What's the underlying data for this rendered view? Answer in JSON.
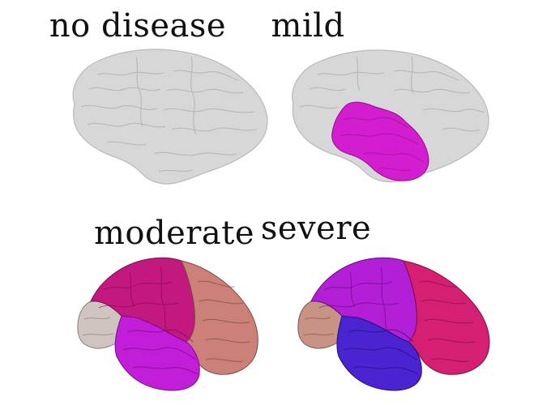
{
  "panels": [
    {
      "id": "no-disease",
      "title": "no disease",
      "regions": []
    },
    {
      "id": "mild",
      "title": "mild",
      "regions": [
        {
          "name": "temporal",
          "color": "#d21ecf"
        }
      ]
    },
    {
      "id": "moderate",
      "title": "moderate",
      "regions": [
        {
          "name": "occipital",
          "color": "#cfc4c0"
        },
        {
          "name": "parietal",
          "color": "#c3197f"
        },
        {
          "name": "frontal",
          "color": "#cb8177"
        },
        {
          "name": "temporal",
          "color": "#c21ed9"
        }
      ]
    },
    {
      "id": "severe",
      "title": "severe",
      "regions": [
        {
          "name": "occipital",
          "color": "#c89385"
        },
        {
          "name": "parietal",
          "color": "#b21fd7"
        },
        {
          "name": "frontal",
          "color": "#d41f72"
        },
        {
          "name": "temporal",
          "color": "#4a24d0"
        }
      ]
    }
  ],
  "base_color": "#d7d7d7"
}
